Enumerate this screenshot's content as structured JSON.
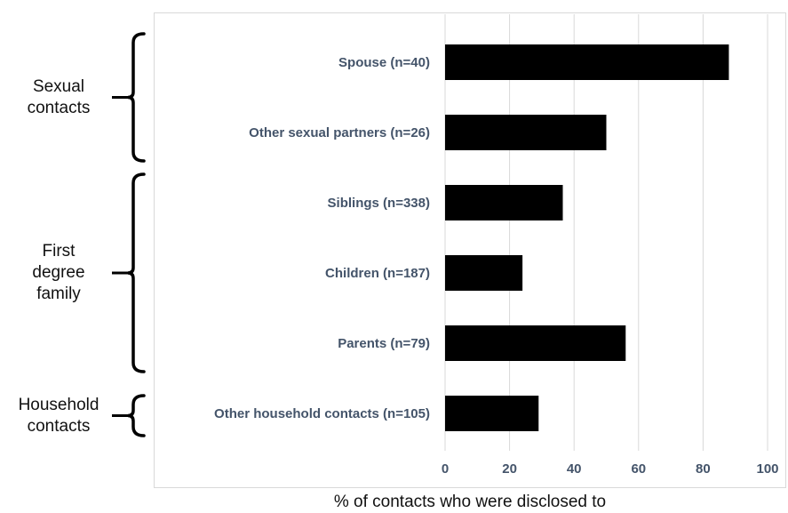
{
  "chart_data": {
    "type": "bar",
    "orientation": "horizontal",
    "categories": [
      "Spouse (n=40)",
      "Other sexual partners (n=26)",
      "Siblings (n=338)",
      "Children (n=187)",
      "Parents (n=79)",
      "Other household contacts (n=105)"
    ],
    "values": [
      88,
      50,
      36.5,
      24,
      56,
      29
    ],
    "xlabel": "% of contacts who were disclosed to",
    "xlim": [
      0,
      100
    ],
    "xticks": [
      0,
      20,
      40,
      60,
      80,
      100
    ],
    "grid": "vertical",
    "bar_color": "#000000",
    "groups": [
      {
        "label_lines": [
          "Sexual",
          "contacts"
        ],
        "categories": [
          0,
          1
        ]
      },
      {
        "label_lines": [
          "First",
          "degree",
          "family"
        ],
        "categories": [
          2,
          3,
          4
        ]
      },
      {
        "label_lines": [
          "Household",
          "contacts"
        ],
        "categories": [
          5
        ]
      }
    ]
  }
}
